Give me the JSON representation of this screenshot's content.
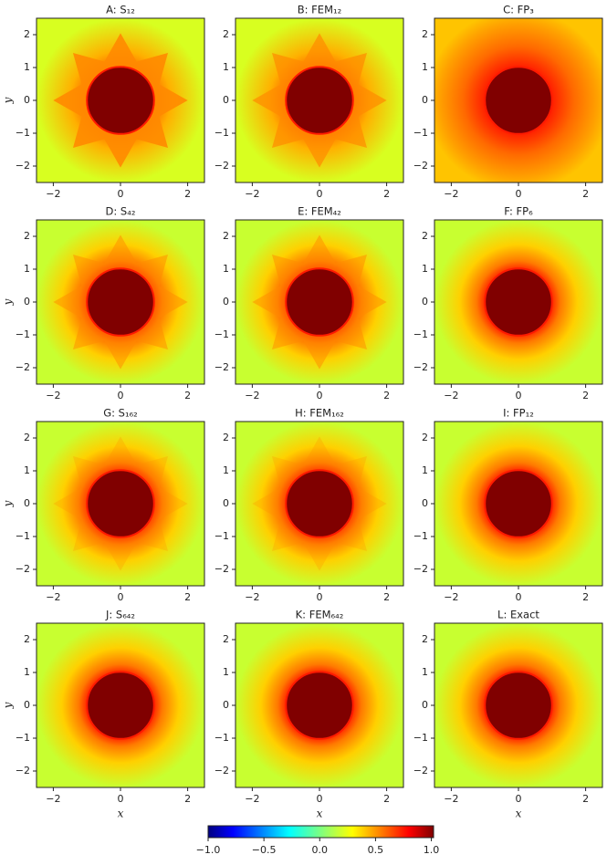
{
  "chart_data": [
    {
      "type": "heatmap",
      "title": "A: S₁₂",
      "ylabel": "y",
      "xlim": [
        -2.5,
        2.5
      ],
      "ylim": [
        -2.5,
        2.5
      ],
      "xticks": [
        {
          "value": -2,
          "label": "−2"
        },
        0,
        2
      ],
      "yticks": [
        {
          "value": -2,
          "label": "−2"
        },
        {
          "value": -1,
          "label": "−1"
        },
        0,
        1,
        2
      ]
    },
    {
      "type": "heatmap",
      "title": "B: FEM₁₂",
      "xlim": [
        -2.5,
        2.5
      ],
      "ylim": [
        -2.5,
        2.5
      ],
      "xticks": [
        {
          "value": -2,
          "label": "−2"
        },
        0,
        2
      ],
      "yticks": [
        {
          "value": -2,
          "label": "−2"
        },
        {
          "value": -1,
          "label": "−1"
        },
        0,
        1,
        2
      ]
    },
    {
      "type": "heatmap",
      "title": "C: FP₃",
      "xlim": [
        -2.5,
        2.5
      ],
      "ylim": [
        -2.5,
        2.5
      ],
      "xticks": [
        {
          "value": -2,
          "label": "−2"
        },
        0,
        2
      ],
      "yticks": [
        {
          "value": -2,
          "label": "−2"
        },
        {
          "value": -1,
          "label": "−1"
        },
        0,
        1,
        2
      ]
    },
    {
      "type": "heatmap",
      "title": "D: S₄₂",
      "ylabel": "y",
      "xlim": [
        -2.5,
        2.5
      ],
      "ylim": [
        -2.5,
        2.5
      ],
      "xticks": [
        {
          "value": -2,
          "label": "−2"
        },
        0,
        2
      ],
      "yticks": [
        {
          "value": -2,
          "label": "−2"
        },
        {
          "value": -1,
          "label": "−1"
        },
        0,
        1,
        2
      ]
    },
    {
      "type": "heatmap",
      "title": "E: FEM₄₂",
      "xlim": [
        -2.5,
        2.5
      ],
      "ylim": [
        -2.5,
        2.5
      ],
      "xticks": [
        {
          "value": -2,
          "label": "−2"
        },
        0,
        2
      ],
      "yticks": [
        {
          "value": -2,
          "label": "−2"
        },
        {
          "value": -1,
          "label": "−1"
        },
        0,
        1,
        2
      ]
    },
    {
      "type": "heatmap",
      "title": "F: FP₆",
      "xlim": [
        -2.5,
        2.5
      ],
      "ylim": [
        -2.5,
        2.5
      ],
      "xticks": [
        {
          "value": -2,
          "label": "−2"
        },
        0,
        2
      ],
      "yticks": [
        {
          "value": -2,
          "label": "−2"
        },
        {
          "value": -1,
          "label": "−1"
        },
        0,
        1,
        2
      ]
    },
    {
      "type": "heatmap",
      "title": "G: S₁₆₂",
      "ylabel": "y",
      "xlim": [
        -2.5,
        2.5
      ],
      "ylim": [
        -2.5,
        2.5
      ],
      "xticks": [
        {
          "value": -2,
          "label": "−2"
        },
        0,
        2
      ],
      "yticks": [
        {
          "value": -2,
          "label": "−2"
        },
        {
          "value": -1,
          "label": "−1"
        },
        0,
        1,
        2
      ]
    },
    {
      "type": "heatmap",
      "title": "H: FEM₁₆₂",
      "xlim": [
        -2.5,
        2.5
      ],
      "ylim": [
        -2.5,
        2.5
      ],
      "xticks": [
        {
          "value": -2,
          "label": "−2"
        },
        0,
        2
      ],
      "yticks": [
        {
          "value": -2,
          "label": "−2"
        },
        {
          "value": -1,
          "label": "−1"
        },
        0,
        1,
        2
      ]
    },
    {
      "type": "heatmap",
      "title": "I: FP₁₂",
      "xlim": [
        -2.5,
        2.5
      ],
      "ylim": [
        -2.5,
        2.5
      ],
      "xticks": [
        {
          "value": -2,
          "label": "−2"
        },
        0,
        2
      ],
      "yticks": [
        {
          "value": -2,
          "label": "−2"
        },
        {
          "value": -1,
          "label": "−1"
        },
        0,
        1,
        2
      ]
    },
    {
      "type": "heatmap",
      "title": "J: S₆₄₂",
      "ylabel": "y",
      "xlabel": "x",
      "xlim": [
        -2.5,
        2.5
      ],
      "ylim": [
        -2.5,
        2.5
      ],
      "xticks": [
        {
          "value": -2,
          "label": "−2"
        },
        0,
        2
      ],
      "yticks": [
        {
          "value": -2,
          "label": "−2"
        },
        {
          "value": -1,
          "label": "−1"
        },
        0,
        1,
        2
      ]
    },
    {
      "type": "heatmap",
      "title": "K: FEM₆₄₂",
      "xlabel": "x",
      "xlim": [
        -2.5,
        2.5
      ],
      "ylim": [
        -2.5,
        2.5
      ],
      "xticks": [
        {
          "value": -2,
          "label": "−2"
        },
        0,
        2
      ],
      "yticks": [
        {
          "value": -2,
          "label": "−2"
        },
        {
          "value": -1,
          "label": "−1"
        },
        0,
        1,
        2
      ]
    },
    {
      "type": "heatmap",
      "title": "L: Exact",
      "xlabel": "x",
      "xlim": [
        -2.5,
        2.5
      ],
      "ylim": [
        -2.5,
        2.5
      ],
      "xticks": [
        {
          "value": -2,
          "label": "−2"
        },
        0,
        2
      ],
      "yticks": [
        {
          "value": -2,
          "label": "−2"
        },
        {
          "value": -1,
          "label": "−1"
        },
        0,
        1,
        2
      ]
    },
    {
      "type": "colorbar",
      "xlim": [
        -1.0,
        1.02
      ],
      "xticks": [
        {
          "value": -1,
          "label": "−1.0"
        },
        {
          "value": -0.5,
          "label": "−0.5"
        },
        {
          "value": 0,
          "label": "0.0"
        },
        0.5,
        {
          "value": 1,
          "label": "1.0"
        }
      ]
    }
  ]
}
